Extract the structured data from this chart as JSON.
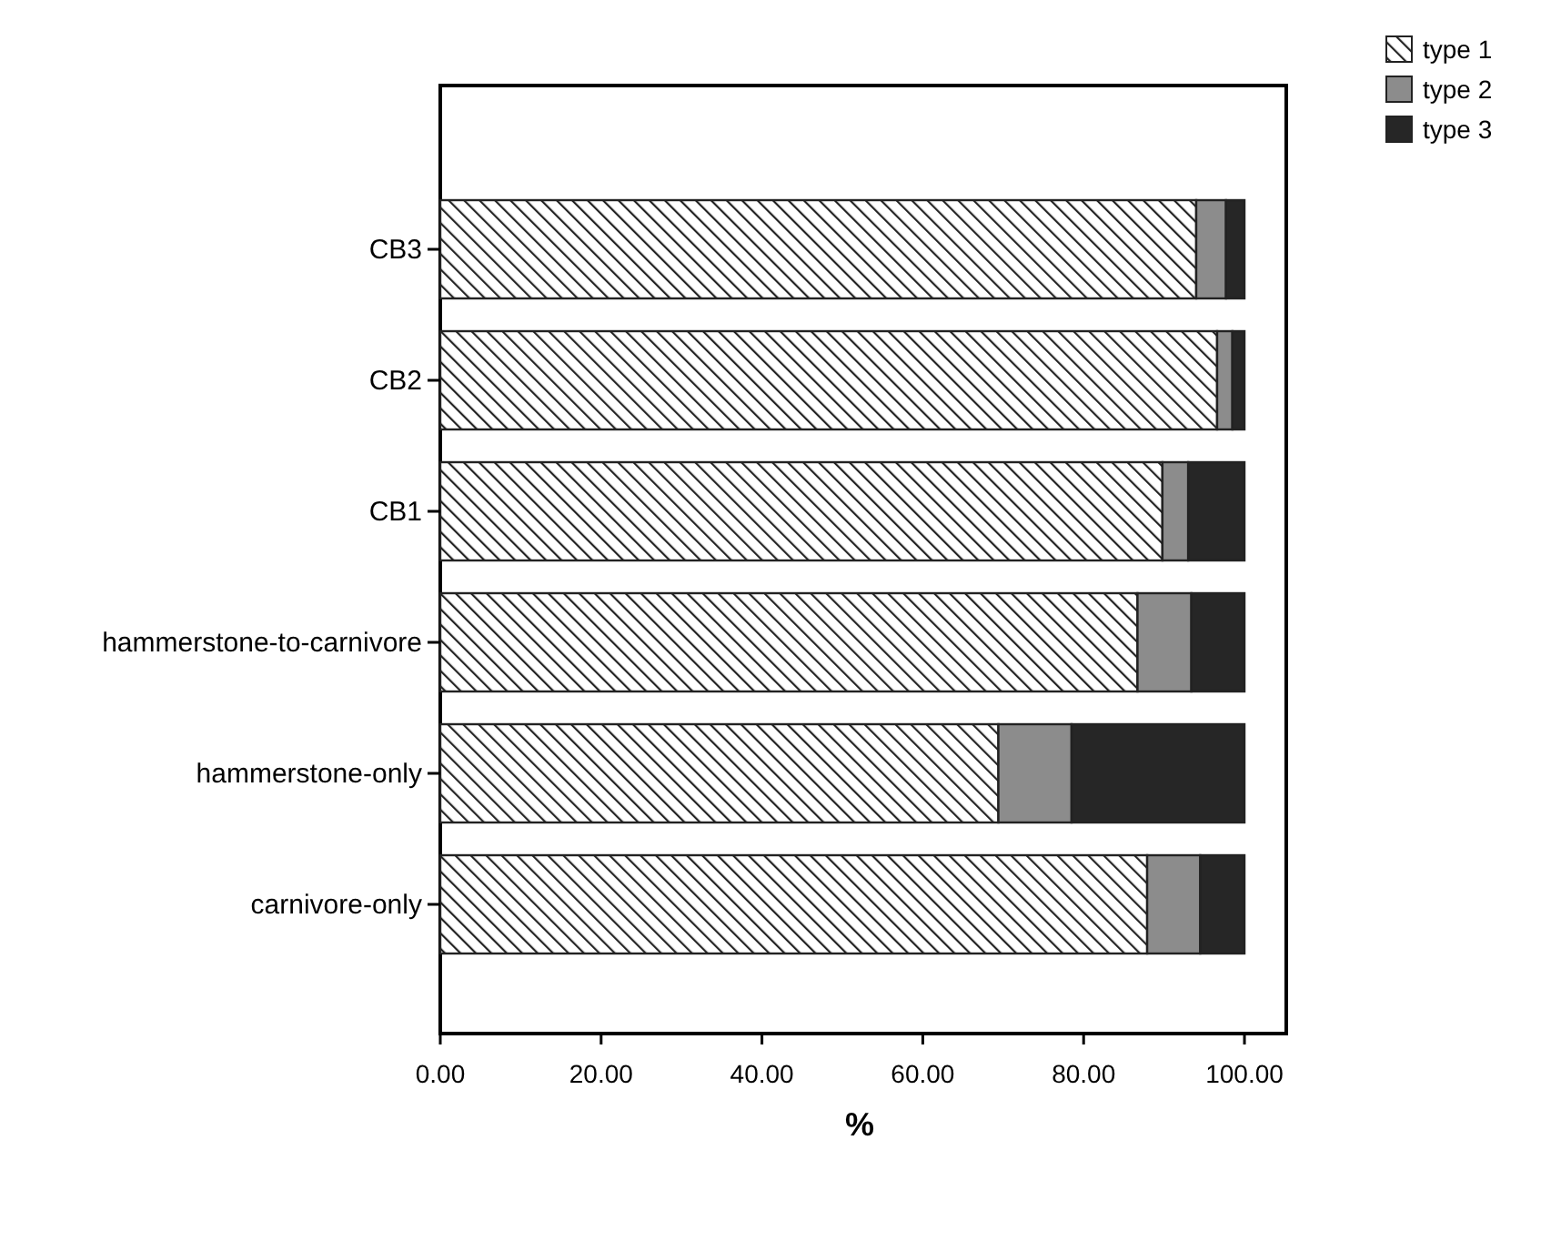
{
  "chart_data": {
    "type": "bar",
    "orientation": "horizontal",
    "stacked": true,
    "xlabel": "%",
    "categories": [
      "CB3",
      "CB2",
      "CB1",
      "hammerstone-to-carnivore",
      "hammerstone-only",
      "carnivore-only"
    ],
    "series": [
      {
        "name": "type 1",
        "color": "#222222",
        "values": [
          94.0,
          96.6,
          89.8,
          86.7,
          69.4,
          87.9
        ]
      },
      {
        "name": "type 2",
        "color": "#8c8c8c",
        "values": [
          3.7,
          1.9,
          3.2,
          6.7,
          9.1,
          6.6
        ]
      },
      {
        "name": "type 3",
        "color": "#262626",
        "values": [
          2.3,
          1.5,
          7.0,
          6.6,
          21.5,
          5.5
        ]
      }
    ],
    "xlim": [
      0,
      105.2
    ],
    "xticks": [
      {
        "value": 0,
        "label": "0.00"
      },
      {
        "value": 20,
        "label": "20.00"
      },
      {
        "value": 40,
        "label": "40.00"
      },
      {
        "value": 60,
        "label": "60.00"
      },
      {
        "value": 80,
        "label": "80.00"
      },
      {
        "value": 100,
        "label": "100.00"
      }
    ],
    "legend": "top right",
    "grid": false
  }
}
